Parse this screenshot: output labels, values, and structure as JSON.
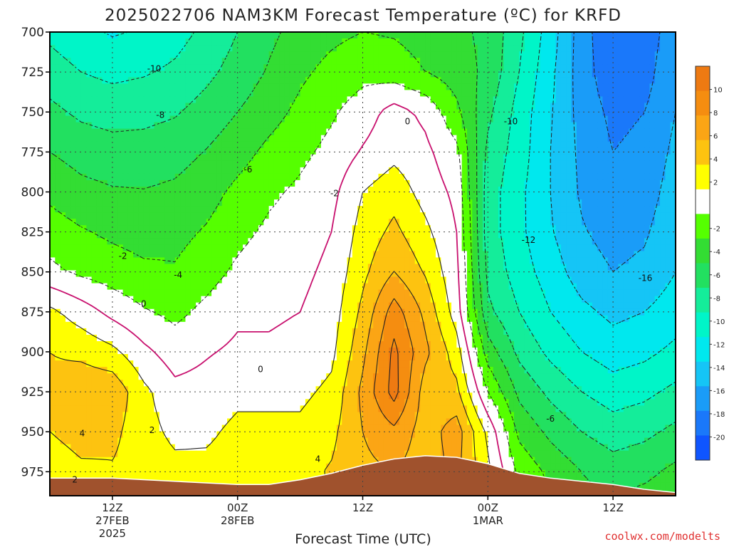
{
  "chart_data": {
    "type": "heatmap",
    "title": "2025022706 NAM3KM Forecast Temperature (ºC) for KRFD",
    "xlabel": "Forecast Time (UTC)",
    "ylabel": "",
    "credit": "coolwx.com/modelts",
    "y_axis": {
      "unit": "hPa",
      "ticks": [
        "700",
        "725",
        "750",
        "775",
        "800",
        "825",
        "850",
        "875",
        "900",
        "925",
        "950",
        "975"
      ],
      "range": [
        700,
        990
      ],
      "inverted": true
    },
    "x_axis": {
      "range_hours": [
        0,
        60
      ],
      "ticks": [
        {
          "hour": 6,
          "lines": [
            "12Z",
            "27FEB",
            "2025"
          ]
        },
        {
          "hour": 18,
          "lines": [
            "00Z",
            "28FEB"
          ]
        },
        {
          "hour": 30,
          "lines": [
            "12Z"
          ]
        },
        {
          "hour": 42,
          "lines": [
            "00Z",
            "1MAR"
          ]
        },
        {
          "hour": 54,
          "lines": [
            "12Z"
          ]
        }
      ]
    },
    "grid": true,
    "colorbar": {
      "placement": "right",
      "ticks": [
        "10",
        "8",
        "6",
        "4",
        "2",
        "-2",
        "-4",
        "-6",
        "-8",
        "-10",
        "-12",
        "-14",
        "-16",
        "-18",
        "-20"
      ],
      "bands": [
        {
          "from": 10,
          "to": 12,
          "color": "#ee7a12"
        },
        {
          "from": 8,
          "to": 10,
          "color": "#f58d10"
        },
        {
          "from": 6,
          "to": 8,
          "color": "#fba515"
        },
        {
          "from": 4,
          "to": 6,
          "color": "#fdc310"
        },
        {
          "from": 2,
          "to": 4,
          "color": "#ffff00"
        },
        {
          "from": -2,
          "to": 2,
          "color": "#ffffff"
        },
        {
          "from": -4,
          "to": -2,
          "color": "#55ff00"
        },
        {
          "from": -6,
          "to": -4,
          "color": "#33dd33"
        },
        {
          "from": -8,
          "to": -6,
          "color": "#22e060"
        },
        {
          "from": -10,
          "to": -8,
          "color": "#14ed9a"
        },
        {
          "from": -12,
          "to": -10,
          "color": "#00f5c8"
        },
        {
          "from": -14,
          "to": -12,
          "color": "#00e8ee"
        },
        {
          "from": -16,
          "to": -14,
          "color": "#15c5f6"
        },
        {
          "from": -18,
          "to": -16,
          "color": "#1a9cf8"
        },
        {
          "from": -20,
          "to": -18,
          "color": "#1a78fa"
        },
        {
          "from": -22,
          "to": -20,
          "color": "#0f55ff"
        }
      ]
    },
    "terrain_color": "#a0522d",
    "contour_labels": [
      {
        "text": "-10",
        "hour": 10,
        "p": 723
      },
      {
        "text": "-8",
        "hour": 10.6,
        "p": 752
      },
      {
        "text": "-6",
        "hour": 19,
        "p": 786
      },
      {
        "text": "-4",
        "hour": 12.3,
        "p": 852
      },
      {
        "text": "-2",
        "hour": 7,
        "p": 840
      },
      {
        "text": "-2",
        "hour": 27.3,
        "p": 801
      },
      {
        "text": "0",
        "hour": 9,
        "p": 870
      },
      {
        "text": "0",
        "hour": 20.2,
        "p": 911
      },
      {
        "text": "0",
        "hour": 34.3,
        "p": 756
      },
      {
        "text": "2",
        "hour": 9.8,
        "p": 949
      },
      {
        "text": "2",
        "hour": 2.4,
        "p": 980
      },
      {
        "text": "4",
        "hour": 3.1,
        "p": 951
      },
      {
        "text": "4",
        "hour": 25.7,
        "p": 967
      },
      {
        "text": "-10",
        "hour": 44.2,
        "p": 756
      },
      {
        "text": "-12",
        "hour": 45.9,
        "p": 830
      },
      {
        "text": "-6",
        "hour": 48,
        "p": 942
      },
      {
        "text": "-16",
        "hour": 57.1,
        "p": 854
      }
    ],
    "temperature_field_celsius": {
      "hours": [
        0,
        3,
        6,
        9,
        12,
        15,
        18,
        21,
        24,
        27,
        30,
        33,
        36,
        39,
        42,
        45,
        48,
        51,
        54,
        57,
        60
      ],
      "pressures": [
        700,
        725,
        750,
        775,
        800,
        825,
        850,
        875,
        900,
        925,
        950,
        975,
        990
      ],
      "rows": [
        [
          -10.5,
          -11.5,
          -12.2,
          -11.8,
          -10.8,
          -9.5,
          -8.0,
          -6.5,
          -5.2,
          -4.5,
          -4.0,
          -4.2,
          -4.8,
          -5.5,
          -6.5,
          -9.5,
          -13.0,
          -17.0,
          -20.0,
          -19.5,
          -16.5
        ],
        [
          -9.0,
          -10.0,
          -10.5,
          -10.2,
          -9.6,
          -8.5,
          -7.2,
          -5.8,
          -4.4,
          -3.4,
          -2.6,
          -3.0,
          -4.0,
          -5.0,
          -6.5,
          -10.0,
          -13.5,
          -17.0,
          -19.5,
          -19.0,
          -16.0
        ],
        [
          -7.5,
          -8.4,
          -8.8,
          -8.6,
          -8.2,
          -7.2,
          -6.0,
          -4.8,
          -3.5,
          -2.3,
          -1.0,
          0.8,
          -0.5,
          -3.5,
          -7.5,
          -10.8,
          -13.8,
          -16.8,
          -18.5,
          -18.0,
          -16.0
        ],
        [
          -6.0,
          -6.8,
          -7.2,
          -7.2,
          -6.8,
          -5.9,
          -4.8,
          -3.5,
          -2.5,
          -1.4,
          0.2,
          1.4,
          0.5,
          -1.5,
          -8.5,
          -11.0,
          -14.0,
          -16.5,
          -18.0,
          -17.5,
          -15.5
        ],
        [
          -4.5,
          -5.4,
          -5.8,
          -5.9,
          -5.6,
          -4.8,
          -3.5,
          -2.4,
          -1.6,
          -0.6,
          2.0,
          3.2,
          1.2,
          -0.5,
          -9.0,
          -11.5,
          -14.0,
          -16.3,
          -17.5,
          -17.0,
          -15.0
        ],
        [
          -3.0,
          -3.8,
          -4.4,
          -4.8,
          -4.6,
          -3.8,
          -2.6,
          -1.6,
          -1.0,
          0.0,
          2.8,
          4.5,
          2.5,
          0.0,
          -9.0,
          -11.5,
          -13.8,
          -15.8,
          -16.8,
          -16.3,
          -14.5
        ],
        [
          -1.5,
          -2.4,
          -3.0,
          -3.6,
          -3.8,
          -2.8,
          -1.6,
          -0.7,
          -0.5,
          0.5,
          3.5,
          6.0,
          3.8,
          0.5,
          -8.5,
          -11.0,
          -13.0,
          -15.0,
          -16.0,
          -15.5,
          -14.0
        ],
        [
          2.5,
          1.0,
          -0.6,
          -1.8,
          -2.5,
          -1.5,
          -0.4,
          -0.2,
          0.0,
          1.0,
          4.5,
          9.0,
          5.5,
          1.0,
          -7.5,
          -10.0,
          -12.0,
          -13.5,
          -14.5,
          -14.0,
          -13.0
        ],
        [
          4.0,
          3.5,
          2.5,
          0.5,
          -1.0,
          -0.2,
          0.4,
          0.2,
          0.4,
          1.5,
          5.5,
          10.5,
          6.5,
          3.0,
          -5.0,
          -8.5,
          -10.5,
          -12.0,
          -13.0,
          -12.5,
          -11.5
        ],
        [
          4.5,
          5.5,
          5.5,
          2.5,
          0.6,
          0.8,
          1.5,
          1.4,
          1.5,
          2.5,
          6.5,
          10.8,
          5.0,
          4.5,
          -2.0,
          -6.5,
          -8.5,
          -10.0,
          -11.0,
          -10.5,
          -9.5
        ],
        [
          4.0,
          5.0,
          4.5,
          2.8,
          1.5,
          1.6,
          2.5,
          2.6,
          2.5,
          3.5,
          6.0,
          7.5,
          5.0,
          7.0,
          1.5,
          -4.5,
          -6.5,
          -8.0,
          -9.0,
          -8.5,
          -7.5
        ],
        [
          2.5,
          3.5,
          3.8,
          3.2,
          2.6,
          2.6,
          3.0,
          3.2,
          3.4,
          4.2,
          5.5,
          6.0,
          5.0,
          6.5,
          2.5,
          -2.5,
          -4.5,
          -6.0,
          -7.0,
          -6.5,
          -5.5
        ],
        [
          2.0,
          2.8,
          3.2,
          3.0,
          2.8,
          2.8,
          3.0,
          3.2,
          3.4,
          4.0,
          5.0,
          5.5,
          5.0,
          5.5,
          2.5,
          -2.0,
          -4.0,
          -5.5,
          -6.0,
          -5.5,
          -5.0
        ]
      ]
    },
    "terrain_surface": [
      {
        "hour": 0,
        "p": 979
      },
      {
        "hour": 6,
        "p": 979
      },
      {
        "hour": 12,
        "p": 981
      },
      {
        "hour": 18,
        "p": 983
      },
      {
        "hour": 21,
        "p": 983
      },
      {
        "hour": 24,
        "p": 980
      },
      {
        "hour": 27,
        "p": 976
      },
      {
        "hour": 30,
        "p": 971
      },
      {
        "hour": 33,
        "p": 967
      },
      {
        "hour": 36,
        "p": 965
      },
      {
        "hour": 39,
        "p": 966
      },
      {
        "hour": 42,
        "p": 970
      },
      {
        "hour": 45,
        "p": 976
      },
      {
        "hour": 48,
        "p": 979
      },
      {
        "hour": 51,
        "p": 981
      },
      {
        "hour": 54,
        "p": 983
      },
      {
        "hour": 57,
        "p": 986
      },
      {
        "hour": 60,
        "p": 988
      }
    ]
  }
}
